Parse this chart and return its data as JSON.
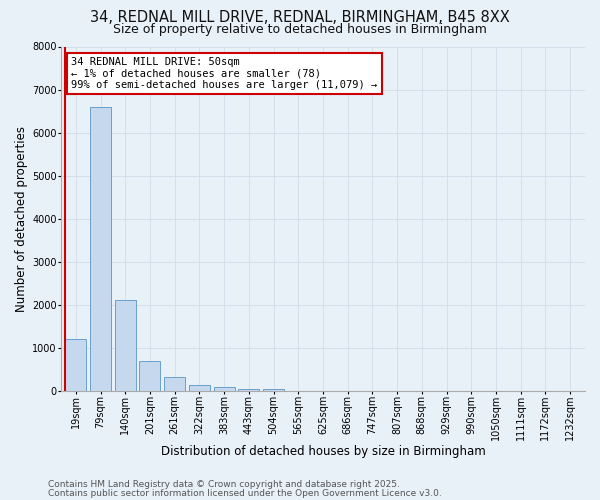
{
  "title_line1": "34, REDNAL MILL DRIVE, REDNAL, BIRMINGHAM, B45 8XX",
  "title_line2": "Size of property relative to detached houses in Birmingham",
  "xlabel": "Distribution of detached houses by size in Birmingham",
  "ylabel": "Number of detached properties",
  "categories": [
    "19sqm",
    "79sqm",
    "140sqm",
    "201sqm",
    "261sqm",
    "322sqm",
    "383sqm",
    "443sqm",
    "504sqm",
    "565sqm",
    "625sqm",
    "686sqm",
    "747sqm",
    "807sqm",
    "868sqm",
    "929sqm",
    "990sqm",
    "1050sqm",
    "1111sqm",
    "1172sqm",
    "1232sqm"
  ],
  "values": [
    1200,
    6600,
    2100,
    680,
    310,
    140,
    80,
    50,
    50,
    0,
    0,
    0,
    0,
    0,
    0,
    0,
    0,
    0,
    0,
    0,
    0
  ],
  "bar_color": "#c5d8ed",
  "bar_edge_color": "#5a96c8",
  "annotation_text": "34 REDNAL MILL DRIVE: 50sqm\n← 1% of detached houses are smaller (78)\n99% of semi-detached houses are larger (11,079) →",
  "annotation_box_color": "#ffffff",
  "annotation_box_edge": "#cc0000",
  "red_line_color": "#cc0000",
  "ylim": [
    0,
    8000
  ],
  "yticks": [
    0,
    1000,
    2000,
    3000,
    4000,
    5000,
    6000,
    7000,
    8000
  ],
  "grid_color": "#d0dce8",
  "background_color": "#e8f0f8",
  "footer_line1": "Contains HM Land Registry data © Crown copyright and database right 2025.",
  "footer_line2": "Contains public sector information licensed under the Open Government Licence v3.0.",
  "title_fontsize": 10.5,
  "subtitle_fontsize": 9,
  "axis_label_fontsize": 8.5,
  "tick_fontsize": 7,
  "annotation_fontsize": 7.5,
  "footer_fontsize": 6.5
}
